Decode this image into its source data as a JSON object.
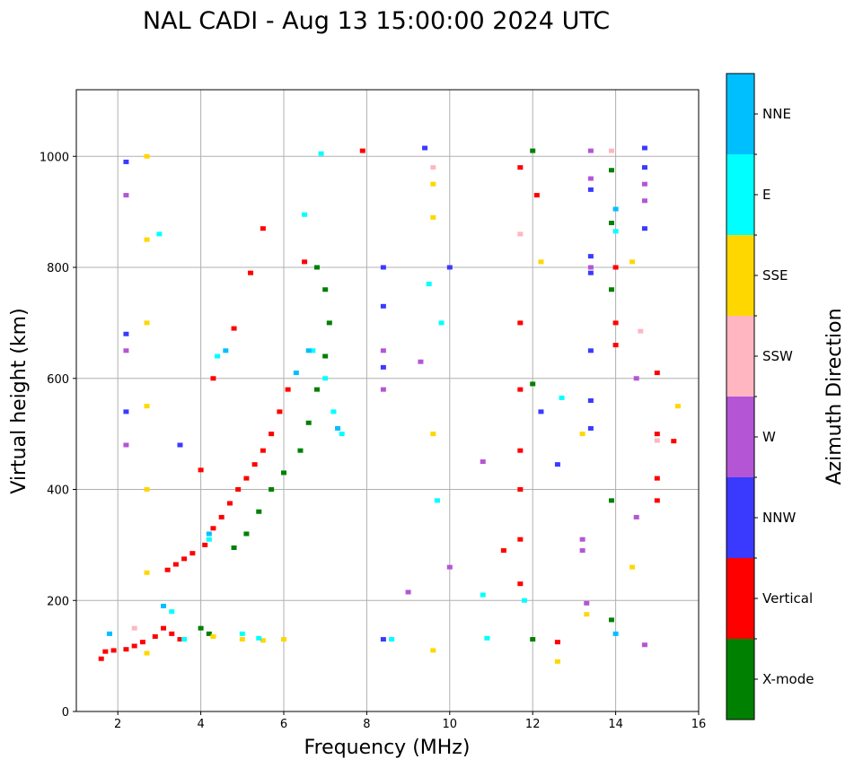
{
  "chart_data": {
    "type": "scatter",
    "title": "NAL CADI - Aug 13 15:00:00 2024 UTC",
    "xlabel": "Frequency (MHz)",
    "ylabel": "Virtual height (km)",
    "xlim": [
      1,
      16
    ],
    "ylim": [
      0,
      1120
    ],
    "xticks": [
      2,
      4,
      6,
      8,
      10,
      12,
      14,
      16
    ],
    "yticks": [
      0,
      200,
      400,
      600,
      800,
      1000
    ],
    "grid": true,
    "colorbar": {
      "label": "Azimuth Direction",
      "categories": [
        {
          "name": "X-mode",
          "color": "#008000"
        },
        {
          "name": "Vertical",
          "color": "#ff0000"
        },
        {
          "name": "NNW",
          "color": "#3a3aff"
        },
        {
          "name": "W",
          "color": "#b455d6"
        },
        {
          "name": "SSW",
          "color": "#ffb6c1"
        },
        {
          "name": "SSE",
          "color": "#ffd700"
        },
        {
          "name": "E",
          "color": "#00ffff"
        },
        {
          "name": "NNE",
          "color": "#00bfff"
        }
      ]
    },
    "series": [
      {
        "name": "Vertical",
        "points": [
          [
            1.6,
            95
          ],
          [
            1.7,
            108
          ],
          [
            1.9,
            110
          ],
          [
            2.2,
            112
          ],
          [
            2.4,
            118
          ],
          [
            2.6,
            125
          ],
          [
            2.9,
            135
          ],
          [
            3.1,
            150
          ],
          [
            3.3,
            140
          ],
          [
            3.5,
            130
          ],
          [
            3.2,
            255
          ],
          [
            3.4,
            265
          ],
          [
            3.6,
            275
          ],
          [
            3.8,
            285
          ],
          [
            4.1,
            300
          ],
          [
            4.3,
            330
          ],
          [
            4.5,
            350
          ],
          [
            4.7,
            375
          ],
          [
            4.9,
            400
          ],
          [
            5.1,
            420
          ],
          [
            5.3,
            445
          ],
          [
            5.5,
            470
          ],
          [
            5.7,
            500
          ],
          [
            5.9,
            540
          ],
          [
            6.1,
            580
          ],
          [
            4.8,
            690
          ],
          [
            5.2,
            790
          ],
          [
            5.5,
            870
          ],
          [
            4.0,
            435
          ],
          [
            4.3,
            600
          ],
          [
            6.5,
            810
          ],
          [
            7.9,
            1010
          ],
          [
            11.7,
            980
          ],
          [
            11.7,
            700
          ],
          [
            11.7,
            580
          ],
          [
            11.7,
            470
          ],
          [
            11.7,
            400
          ],
          [
            11.7,
            310
          ],
          [
            11.7,
            230
          ],
          [
            11.3,
            290
          ],
          [
            12.1,
            930
          ],
          [
            12.6,
            125
          ],
          [
            14.0,
            800
          ],
          [
            14.0,
            700
          ],
          [
            14.0,
            660
          ],
          [
            15.0,
            500
          ],
          [
            15.0,
            420
          ],
          [
            15.0,
            380
          ],
          [
            15.0,
            610
          ],
          [
            15.4,
            487
          ]
        ]
      },
      {
        "name": "X-mode",
        "points": [
          [
            4.0,
            150
          ],
          [
            4.2,
            140
          ],
          [
            4.8,
            295
          ],
          [
            5.1,
            320
          ],
          [
            5.4,
            360
          ],
          [
            5.7,
            400
          ],
          [
            6.0,
            430
          ],
          [
            6.4,
            470
          ],
          [
            6.6,
            520
          ],
          [
            6.8,
            580
          ],
          [
            7.0,
            640
          ],
          [
            7.1,
            700
          ],
          [
            7.0,
            760
          ],
          [
            6.8,
            800
          ],
          [
            12.0,
            1010
          ],
          [
            12.0,
            590
          ],
          [
            13.9,
            975
          ],
          [
            13.9,
            880
          ],
          [
            13.9,
            760
          ],
          [
            13.9,
            380
          ],
          [
            13.9,
            165
          ],
          [
            12.0,
            130
          ]
        ]
      },
      {
        "name": "NNW",
        "points": [
          [
            2.2,
            990
          ],
          [
            2.2,
            680
          ],
          [
            2.2,
            540
          ],
          [
            3.5,
            480
          ],
          [
            8.4,
            800
          ],
          [
            8.4,
            730
          ],
          [
            8.4,
            620
          ],
          [
            8.4,
            130
          ],
          [
            9.4,
            1015
          ],
          [
            10.0,
            800
          ],
          [
            12.2,
            540
          ],
          [
            12.6,
            445
          ],
          [
            13.4,
            940
          ],
          [
            13.4,
            820
          ],
          [
            13.4,
            790
          ],
          [
            13.4,
            650
          ],
          [
            13.4,
            560
          ],
          [
            13.4,
            510
          ],
          [
            14.7,
            1015
          ],
          [
            14.7,
            870
          ],
          [
            14.7,
            980
          ]
        ]
      },
      {
        "name": "W",
        "points": [
          [
            2.2,
            930
          ],
          [
            2.2,
            650
          ],
          [
            2.2,
            480
          ],
          [
            8.4,
            580
          ],
          [
            8.4,
            650
          ],
          [
            9.0,
            215
          ],
          [
            9.3,
            630
          ],
          [
            10.0,
            260
          ],
          [
            10.8,
            450
          ],
          [
            13.2,
            310
          ],
          [
            13.2,
            290
          ],
          [
            13.3,
            195
          ],
          [
            13.4,
            1010
          ],
          [
            13.4,
            960
          ],
          [
            13.4,
            800
          ],
          [
            14.7,
            950
          ],
          [
            14.7,
            920
          ],
          [
            14.7,
            120
          ],
          [
            14.5,
            350
          ],
          [
            14.5,
            600
          ]
        ]
      },
      {
        "name": "SSW",
        "points": [
          [
            2.4,
            150
          ],
          [
            9.6,
            980
          ],
          [
            11.7,
            860
          ],
          [
            13.9,
            1010
          ],
          [
            14.6,
            685
          ],
          [
            15.0,
            488
          ]
        ]
      },
      {
        "name": "SSE",
        "points": [
          [
            2.7,
            1000
          ],
          [
            2.7,
            850
          ],
          [
            2.7,
            700
          ],
          [
            2.7,
            550
          ],
          [
            2.7,
            400
          ],
          [
            2.7,
            250
          ],
          [
            2.7,
            105
          ],
          [
            4.3,
            135
          ],
          [
            5.0,
            130
          ],
          [
            5.5,
            128
          ],
          [
            6.0,
            130
          ],
          [
            9.6,
            950
          ],
          [
            9.6,
            890
          ],
          [
            9.6,
            500
          ],
          [
            9.6,
            110
          ],
          [
            12.2,
            810
          ],
          [
            12.6,
            90
          ],
          [
            13.2,
            500
          ],
          [
            13.3,
            175
          ],
          [
            14.4,
            810
          ],
          [
            14.4,
            260
          ],
          [
            15.5,
            550
          ]
        ]
      },
      {
        "name": "E",
        "points": [
          [
            3.0,
            860
          ],
          [
            3.3,
            180
          ],
          [
            3.6,
            130
          ],
          [
            4.2,
            310
          ],
          [
            4.4,
            640
          ],
          [
            5.0,
            140
          ],
          [
            5.4,
            132
          ],
          [
            6.5,
            895
          ],
          [
            6.7,
            650
          ],
          [
            6.9,
            1005
          ],
          [
            7.0,
            600
          ],
          [
            7.2,
            540
          ],
          [
            7.4,
            500
          ],
          [
            8.6,
            130
          ],
          [
            9.5,
            770
          ],
          [
            9.7,
            380
          ],
          [
            9.8,
            700
          ],
          [
            10.8,
            210
          ],
          [
            10.9,
            132
          ],
          [
            11.8,
            200
          ],
          [
            12.7,
            565
          ],
          [
            14.0,
            865
          ]
        ]
      },
      {
        "name": "NNE",
        "points": [
          [
            1.8,
            140
          ],
          [
            3.1,
            190
          ],
          [
            4.2,
            320
          ],
          [
            4.6,
            650
          ],
          [
            6.3,
            610
          ],
          [
            6.6,
            650
          ],
          [
            7.3,
            510
          ],
          [
            14.0,
            140
          ],
          [
            14.0,
            905
          ]
        ]
      }
    ]
  }
}
